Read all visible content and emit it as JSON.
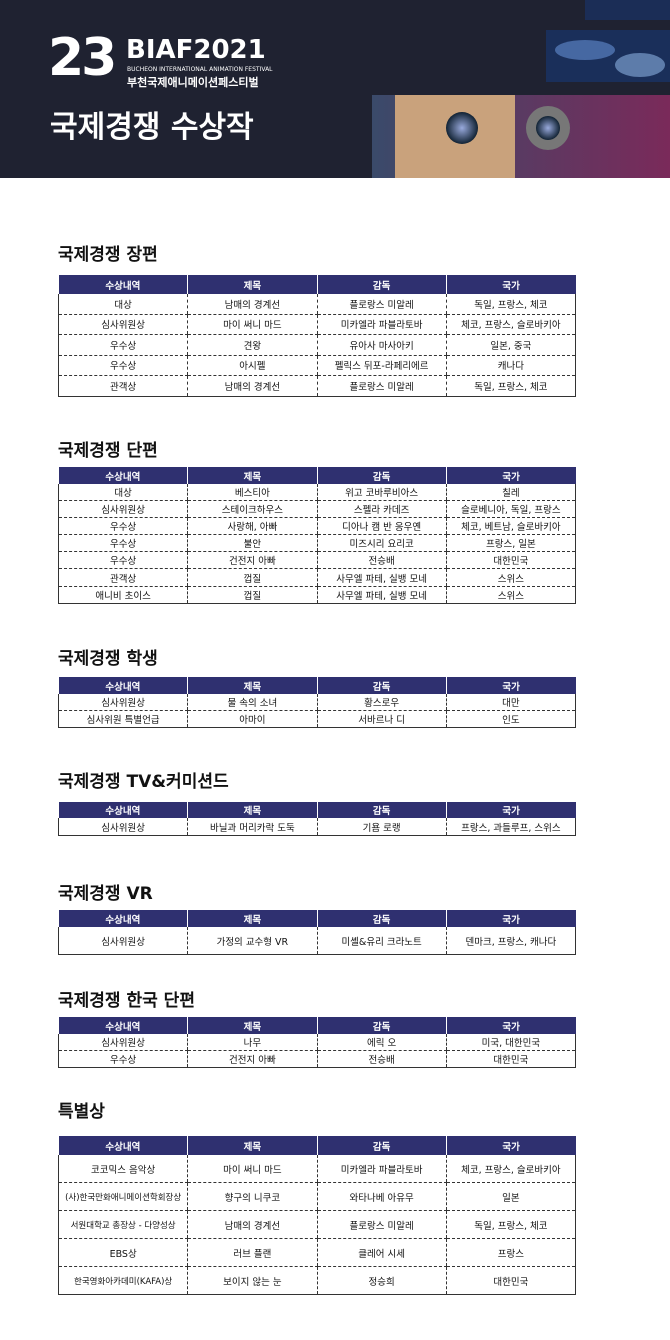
{
  "header": {
    "logo_number": "23",
    "brand": "BIAF2021",
    "subtitle_en": "BUCHEON INTERNATIONAL ANIMATION FESTIVAL",
    "subtitle_ko": "부천국제애니메이션페스티벌",
    "title": "국제경쟁 수상작"
  },
  "sections": [
    {
      "title": "국제경쟁 장편",
      "columns": [
        "수상내역",
        "제목",
        "감독",
        "국가"
      ],
      "rows": [
        [
          "대상",
          "남매의 경계선",
          "플로랑스 미알레",
          "독일, 프랑스, 체코"
        ],
        [
          "심사위원상",
          "마이 써니 마드",
          "미카엘라 파블라토바",
          "체코, 프랑스, 슬로바키아"
        ],
        [
          "우수상",
          "견왕",
          "유아사 마사아키",
          "일본, 중국"
        ],
        [
          "우수상",
          "아시펠",
          "펠릭스 뒤포-라페리에르",
          "캐나다"
        ],
        [
          "관객상",
          "남매의 경계선",
          "플로랑스 미알레",
          "독일, 프랑스, 체코"
        ]
      ]
    },
    {
      "title": "국제경쟁 단편",
      "columns": [
        "수상내역",
        "제목",
        "감독",
        "국가"
      ],
      "rows": [
        [
          "대상",
          "베스티아",
          "위고 코바루비아스",
          "칠레"
        ],
        [
          "심사위원상",
          "스테이크하우스",
          "스펠라 카데즈",
          "슬로베니아, 독일, 프랑스"
        ],
        [
          "우수상",
          "사랑해, 아빠",
          "디아나 캠 반 응우옌",
          "체코, 베트남, 슬로바키아"
        ],
        [
          "우수상",
          "불안",
          "미즈시리 요리코",
          "프랑스, 일본"
        ],
        [
          "우수상",
          "건전지 아빠",
          "전승배",
          "대한민국"
        ],
        [
          "관객상",
          "껍질",
          "사무엘 파테, 실뱅 모네",
          "스위스"
        ],
        [
          "애니비 초이스",
          "껍질",
          "사무엘 파테, 실뱅 모네",
          "스위스"
        ]
      ]
    },
    {
      "title": "국제경쟁 학생",
      "columns": [
        "수상내역",
        "제목",
        "감독",
        "국가"
      ],
      "rows": [
        [
          "심사위원상",
          "물 속의 소녀",
          "황스로우",
          "대만"
        ],
        [
          "심사위원 특별언급",
          "아마이",
          "서바르나 디",
          "인도"
        ]
      ]
    },
    {
      "title": "국제경쟁 TV&커미션드",
      "columns": [
        "수상내역",
        "제목",
        "감독",
        "국가"
      ],
      "rows": [
        [
          "심사위원상",
          "바닐과 머리카락 도둑",
          "기욤 로랭",
          "프랑스, 과들루프, 스위스"
        ]
      ]
    },
    {
      "title": "국제경쟁 VR",
      "columns": [
        "수상내역",
        "제목",
        "감독",
        "국가"
      ],
      "rows": [
        [
          "심사위원상",
          "가정의 교수형 VR",
          "미셸&유리 크라노트",
          "덴마크, 프랑스, 캐나다"
        ]
      ]
    },
    {
      "title": "국제경쟁 한국 단편",
      "columns": [
        "수상내역",
        "제목",
        "감독",
        "국가"
      ],
      "rows": [
        [
          "심사위원상",
          "나무",
          "에릭 오",
          "미국, 대한민국"
        ],
        [
          "우수상",
          "건전지 아빠",
          "전승배",
          "대한민국"
        ]
      ]
    },
    {
      "title": "특별상",
      "columns": [
        "수상내역",
        "제목",
        "감독",
        "국가"
      ],
      "rows": [
        [
          "코코믹스 음악상",
          "마이 써니 마드",
          "미카엘라 파블라토바",
          "체코, 프랑스, 슬로바키아"
        ],
        [
          "(사)한국만화애니메이션학회장상",
          "향구의 니쿠코",
          "와타나베 아유무",
          "일본"
        ],
        [
          "서원대학교 총장상 - 다양성상",
          "남매의 경계선",
          "플로랑스 미알레",
          "독일, 프랑스, 체코"
        ],
        [
          "EBS상",
          "러브 플랜",
          "클레어 시세",
          "프랑스"
        ],
        [
          "한국영화아카데미(KAFA)상",
          "보이지 않는 눈",
          "정승희",
          "대한민국"
        ]
      ]
    }
  ]
}
